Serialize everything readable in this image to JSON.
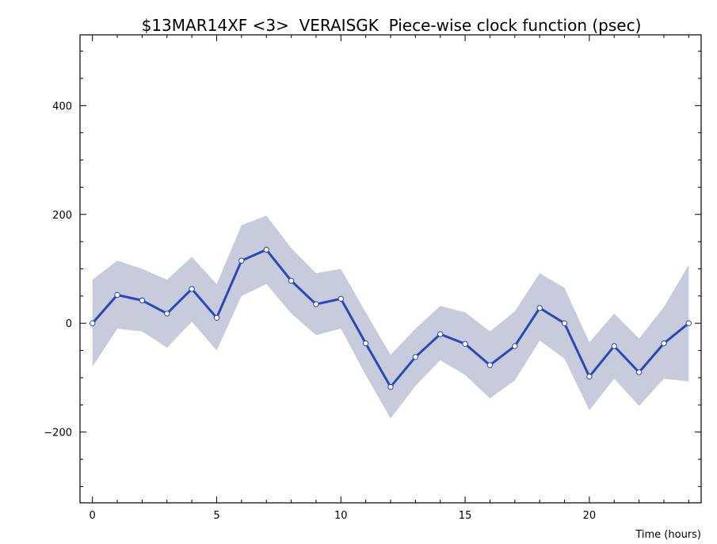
{
  "chart_data": {
    "type": "line",
    "title": "$13MAR14XF <3>  VERAISGK  Piece-wise clock function (psec)",
    "xlabel": "Time (hours)",
    "ylabel": "",
    "xlim": [
      -0.5,
      24.5
    ],
    "ylim": [
      -330,
      530
    ],
    "x_ticks": [
      0,
      5,
      10,
      15,
      20
    ],
    "x_tick_labels": [
      "0",
      "5",
      "10",
      "15",
      "20"
    ],
    "y_ticks": [
      -200,
      0,
      200,
      400
    ],
    "y_tick_labels": [
      "−200",
      "0",
      "200",
      "400"
    ],
    "x": [
      0,
      1,
      2,
      3,
      4,
      5,
      6,
      7,
      8,
      9,
      10,
      11,
      12,
      13,
      14,
      15,
      16,
      17,
      18,
      19,
      20,
      21,
      22,
      23,
      24
    ],
    "series": [
      {
        "values": [
          0,
          52,
          42,
          18,
          63,
          10,
          115,
          135,
          78,
          35,
          45,
          -37,
          -117,
          -62,
          -20,
          -38,
          -77,
          -42,
          28,
          0,
          -98,
          -42,
          -90,
          -37,
          0
        ],
        "band_upper": [
          80,
          115,
          100,
          80,
          122,
          72,
          180,
          198,
          138,
          92,
          100,
          20,
          -58,
          -10,
          32,
          20,
          -15,
          22,
          92,
          65,
          -35,
          18,
          -28,
          30,
          107
        ],
        "band_lower": [
          -80,
          -10,
          -15,
          -45,
          3,
          -50,
          50,
          72,
          18,
          -22,
          -10,
          -95,
          -175,
          -115,
          -68,
          -95,
          -138,
          -105,
          -32,
          -65,
          -160,
          -102,
          -152,
          -102,
          -107
        ],
        "line_color": "#2a48b8",
        "band_color": "#c7cbdb",
        "marker_color": "#ffffff"
      }
    ]
  }
}
